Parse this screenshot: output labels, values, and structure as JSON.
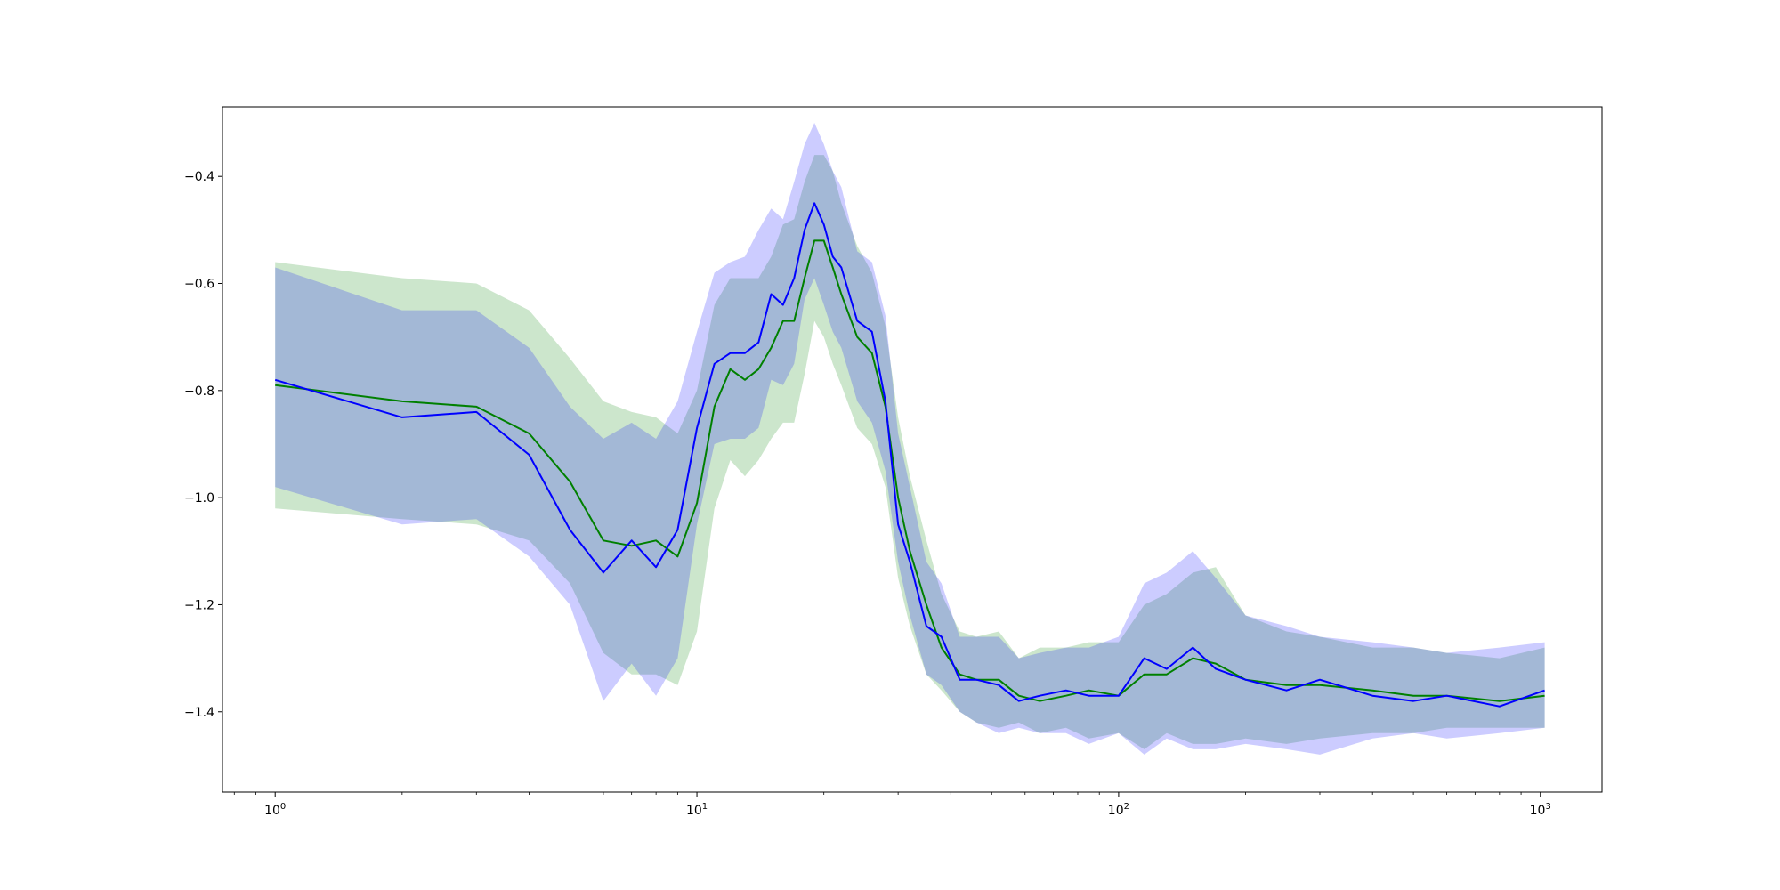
{
  "chart_data": {
    "type": "line",
    "title": "",
    "xlabel": "",
    "ylabel": "",
    "xscale": "log",
    "xlim": [
      0.75,
      1400
    ],
    "ylim": [
      -1.55,
      -0.27
    ],
    "grid": false,
    "legend": "none",
    "x_ticks": [
      {
        "value": 1,
        "base": "10",
        "exp": "0"
      },
      {
        "value": 10,
        "base": "10",
        "exp": "1"
      },
      {
        "value": 100,
        "base": "10",
        "exp": "2"
      },
      {
        "value": 1000,
        "base": "10",
        "exp": "3"
      }
    ],
    "y_ticks": [
      {
        "value": -0.4,
        "label": "−0.4"
      },
      {
        "value": -0.6,
        "label": "−0.6"
      },
      {
        "value": -0.8,
        "label": "−0.8"
      },
      {
        "value": -1.0,
        "label": "−1.0"
      },
      {
        "value": -1.2,
        "label": "−1.2"
      },
      {
        "value": -1.4,
        "label": "−1.4"
      }
    ],
    "series": [
      {
        "color": "#008000",
        "band_color": "#008000",
        "band_opacity": 0.2,
        "x": [
          1,
          2,
          3,
          4,
          5,
          6,
          7,
          8,
          9,
          10,
          11,
          12,
          13,
          14,
          15,
          16,
          17,
          18,
          19,
          20,
          21,
          22,
          24,
          26,
          28,
          30,
          32,
          35,
          38,
          42,
          46,
          52,
          58,
          65,
          75,
          85,
          100,
          115,
          130,
          150,
          170,
          200,
          250,
          300,
          400,
          500,
          600,
          800,
          1024
        ],
        "y": [
          -0.79,
          -0.82,
          -0.83,
          -0.88,
          -0.97,
          -1.08,
          -1.09,
          -1.08,
          -1.11,
          -1.01,
          -0.83,
          -0.76,
          -0.78,
          -0.76,
          -0.72,
          -0.67,
          -0.67,
          -0.59,
          -0.52,
          -0.52,
          -0.57,
          -0.62,
          -0.7,
          -0.73,
          -0.83,
          -1.0,
          -1.1,
          -1.2,
          -1.28,
          -1.33,
          -1.34,
          -1.34,
          -1.37,
          -1.38,
          -1.37,
          -1.36,
          -1.37,
          -1.33,
          -1.33,
          -1.3,
          -1.31,
          -1.34,
          -1.35,
          -1.35,
          -1.36,
          -1.37,
          -1.37,
          -1.38,
          -1.37
        ],
        "lower": [
          -1.02,
          -1.04,
          -1.05,
          -1.08,
          -1.16,
          -1.29,
          -1.33,
          -1.33,
          -1.35,
          -1.25,
          -1.02,
          -0.93,
          -0.96,
          -0.93,
          -0.89,
          -0.86,
          -0.86,
          -0.77,
          -0.67,
          -0.7,
          -0.75,
          -0.79,
          -0.87,
          -0.9,
          -0.98,
          -1.15,
          -1.24,
          -1.33,
          -1.36,
          -1.4,
          -1.42,
          -1.43,
          -1.42,
          -1.44,
          -1.43,
          -1.45,
          -1.44,
          -1.47,
          -1.44,
          -1.46,
          -1.46,
          -1.45,
          -1.46,
          -1.45,
          -1.44,
          -1.44,
          -1.43,
          -1.43,
          -1.43
        ],
        "upper": [
          -0.56,
          -0.59,
          -0.6,
          -0.65,
          -0.74,
          -0.82,
          -0.84,
          -0.85,
          -0.88,
          -0.8,
          -0.64,
          -0.59,
          -0.59,
          -0.59,
          -0.55,
          -0.49,
          -0.48,
          -0.41,
          -0.36,
          -0.36,
          -0.39,
          -0.45,
          -0.53,
          -0.58,
          -0.68,
          -0.85,
          -0.96,
          -1.08,
          -1.18,
          -1.25,
          -1.26,
          -1.25,
          -1.3,
          -1.28,
          -1.28,
          -1.27,
          -1.27,
          -1.2,
          -1.18,
          -1.14,
          -1.13,
          -1.22,
          -1.25,
          -1.26,
          -1.28,
          -1.28,
          -1.29,
          -1.3,
          -1.28
        ]
      },
      {
        "color": "#0000ff",
        "band_color": "#0000ff",
        "band_opacity": 0.2,
        "x": [
          1,
          2,
          3,
          4,
          5,
          6,
          7,
          8,
          9,
          10,
          11,
          12,
          13,
          14,
          15,
          16,
          17,
          18,
          19,
          20,
          21,
          22,
          24,
          26,
          28,
          30,
          32,
          35,
          38,
          42,
          46,
          52,
          58,
          65,
          75,
          85,
          100,
          115,
          130,
          150,
          170,
          200,
          250,
          300,
          400,
          500,
          600,
          800,
          1024
        ],
        "y": [
          -0.78,
          -0.85,
          -0.84,
          -0.92,
          -1.06,
          -1.14,
          -1.08,
          -1.13,
          -1.06,
          -0.87,
          -0.75,
          -0.73,
          -0.73,
          -0.71,
          -0.62,
          -0.64,
          -0.59,
          -0.5,
          -0.45,
          -0.49,
          -0.55,
          -0.57,
          -0.67,
          -0.69,
          -0.82,
          -1.05,
          -1.12,
          -1.24,
          -1.26,
          -1.34,
          -1.34,
          -1.35,
          -1.38,
          -1.37,
          -1.36,
          -1.37,
          -1.37,
          -1.3,
          -1.32,
          -1.28,
          -1.32,
          -1.34,
          -1.36,
          -1.34,
          -1.37,
          -1.38,
          -1.37,
          -1.39,
          -1.36
        ],
        "lower": [
          -0.98,
          -1.05,
          -1.04,
          -1.11,
          -1.2,
          -1.38,
          -1.31,
          -1.37,
          -1.3,
          -1.05,
          -0.9,
          -0.89,
          -0.89,
          -0.87,
          -0.78,
          -0.79,
          -0.75,
          -0.63,
          -0.59,
          -0.64,
          -0.69,
          -0.72,
          -0.82,
          -0.86,
          -0.95,
          -1.12,
          -1.22,
          -1.33,
          -1.35,
          -1.4,
          -1.42,
          -1.44,
          -1.43,
          -1.44,
          -1.44,
          -1.46,
          -1.44,
          -1.48,
          -1.45,
          -1.47,
          -1.47,
          -1.46,
          -1.47,
          -1.48,
          -1.45,
          -1.44,
          -1.45,
          -1.44,
          -1.43
        ],
        "upper": [
          -0.57,
          -0.65,
          -0.65,
          -0.72,
          -0.83,
          -0.89,
          -0.86,
          -0.89,
          -0.82,
          -0.69,
          -0.58,
          -0.56,
          -0.55,
          -0.5,
          -0.46,
          -0.48,
          -0.41,
          -0.34,
          -0.3,
          -0.34,
          -0.39,
          -0.42,
          -0.54,
          -0.56,
          -0.66,
          -0.88,
          -0.98,
          -1.12,
          -1.16,
          -1.26,
          -1.26,
          -1.26,
          -1.3,
          -1.29,
          -1.28,
          -1.28,
          -1.26,
          -1.16,
          -1.14,
          -1.1,
          -1.15,
          -1.22,
          -1.24,
          -1.26,
          -1.27,
          -1.28,
          -1.29,
          -1.28,
          -1.27
        ]
      }
    ]
  }
}
